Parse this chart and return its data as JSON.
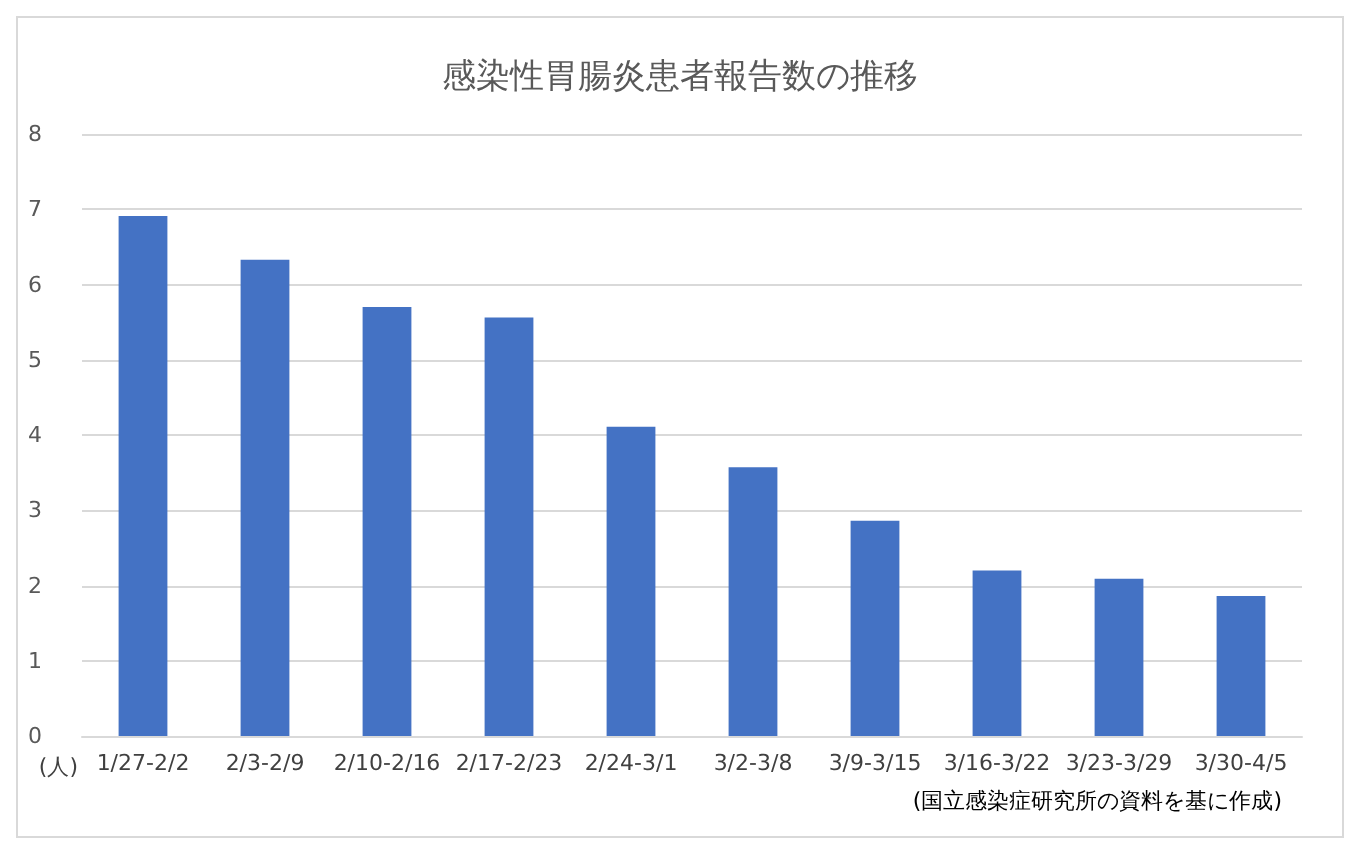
{
  "chart_data": {
    "type": "bar",
    "title": "感染性胃腸炎患者報告数の推移",
    "ylabel": "(人)",
    "categories": [
      "1/27-2/2",
      "2/3-2/9",
      "2/10-2/16",
      "2/17-2/23",
      "2/24-3/1",
      "3/2-3/8",
      "3/9-3/15",
      "3/16-3/22",
      "3/23-3/29",
      "3/30-4/5"
    ],
    "values": [
      6.91,
      6.33,
      5.7,
      5.56,
      4.11,
      3.57,
      2.86,
      2.2,
      2.09,
      1.86
    ],
    "color": "#4472c4",
    "ylim": [
      0,
      8
    ],
    "yticks": [
      0,
      1,
      2,
      3,
      4,
      5,
      6,
      7,
      8
    ],
    "grid": "y",
    "annotations": [
      "(国立感染症研究所の資料を基に作成)"
    ]
  }
}
